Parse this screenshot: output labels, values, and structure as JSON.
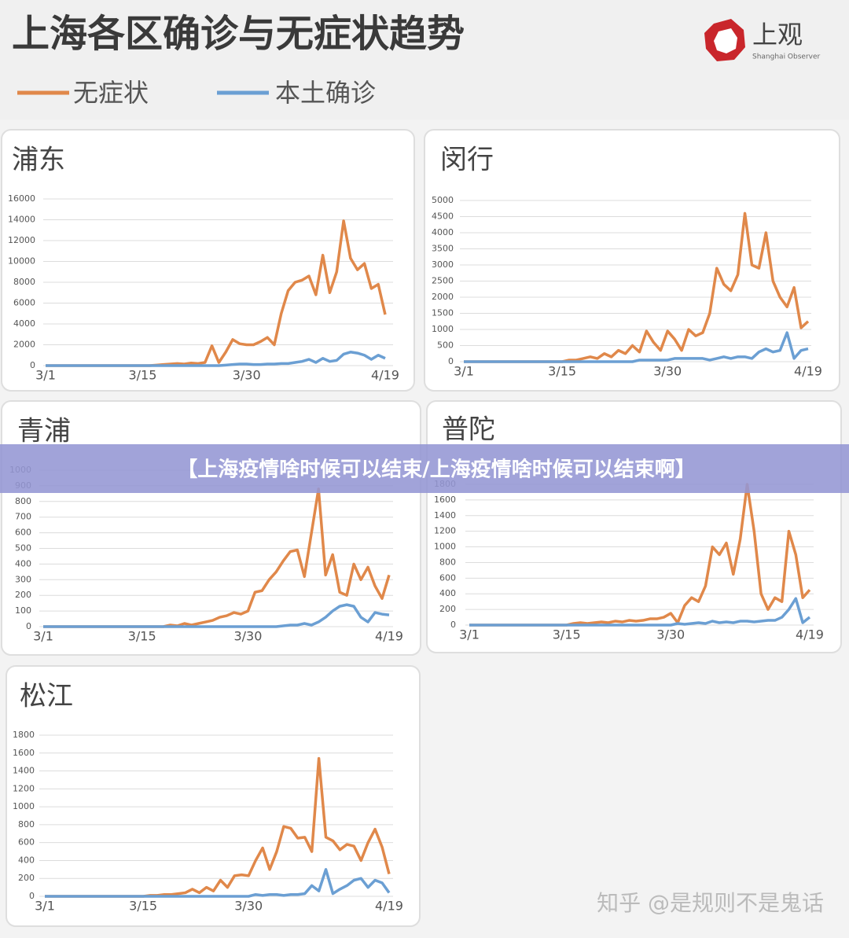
{
  "header": {
    "title": "上海各区确诊与无症状趋势",
    "logo": "上观",
    "logo_subtitle": "Shanghai Observer"
  },
  "banner": "【上海疫情啥时候可以结束/上海疫情啥时候可以结束啊】",
  "watermark": "知乎 @是规则不是鬼话",
  "chart_data": [
    {
      "type": "line",
      "title": "浦东",
      "categories": [
        "3/1",
        null,
        null,
        null,
        null,
        null,
        null,
        null,
        null,
        null,
        null,
        null,
        null,
        null,
        "3/15",
        null,
        null,
        null,
        null,
        null,
        null,
        null,
        null,
        null,
        null,
        null,
        null,
        null,
        null,
        "3/30",
        null,
        null,
        null,
        null,
        null,
        null,
        null,
        null,
        null,
        null,
        null,
        null,
        null,
        null,
        null,
        null,
        null,
        null,
        null,
        "4/19"
      ],
      "series": [
        {
          "name": "无症状",
          "color": "#e0884a",
          "values": [
            0,
            0,
            0,
            0,
            0,
            0,
            0,
            0,
            0,
            0,
            0,
            0,
            0,
            0,
            0,
            0,
            50,
            100,
            150,
            200,
            150,
            250,
            200,
            300,
            1900,
            300,
            1300,
            2500,
            2100,
            2000,
            2000,
            2300,
            2700,
            2000,
            5000,
            7200,
            8000,
            8200,
            8600,
            6800,
            10600,
            7000,
            9000,
            13900,
            10300,
            9200,
            9800,
            7400,
            7800,
            4900
          ]
        },
        {
          "name": "本土确诊",
          "color": "#6b9fd3",
          "values": [
            0,
            0,
            0,
            0,
            0,
            0,
            0,
            0,
            0,
            0,
            0,
            0,
            0,
            0,
            0,
            0,
            0,
            0,
            0,
            0,
            0,
            0,
            0,
            0,
            0,
            0,
            50,
            100,
            150,
            150,
            100,
            100,
            150,
            150,
            200,
            200,
            300,
            400,
            600,
            300,
            700,
            400,
            500,
            1100,
            1300,
            1200,
            1000,
            600,
            1000,
            700
          ]
        }
      ],
      "ylim": [
        0,
        16000
      ],
      "yticks": [
        0,
        2000,
        4000,
        6000,
        8000,
        10000,
        12000,
        14000,
        16000
      ],
      "grid": true
    },
    {
      "type": "line",
      "title": "闵行",
      "categories": [
        "3/1",
        null,
        null,
        null,
        null,
        null,
        null,
        null,
        null,
        null,
        null,
        null,
        null,
        null,
        "3/15",
        null,
        null,
        null,
        null,
        null,
        null,
        null,
        null,
        null,
        null,
        null,
        null,
        null,
        null,
        "3/30",
        null,
        null,
        null,
        null,
        null,
        null,
        null,
        null,
        null,
        null,
        null,
        null,
        null,
        null,
        null,
        null,
        null,
        null,
        null,
        "4/19"
      ],
      "series": [
        {
          "name": "无症状",
          "color": "#e0884a",
          "values": [
            0,
            0,
            0,
            0,
            0,
            0,
            0,
            0,
            0,
            0,
            0,
            0,
            0,
            0,
            0,
            50,
            50,
            100,
            150,
            100,
            250,
            150,
            350,
            250,
            500,
            300,
            950,
            600,
            350,
            950,
            700,
            350,
            1000,
            800,
            900,
            1500,
            2900,
            2400,
            2200,
            2700,
            4600,
            3000,
            2900,
            4000,
            2500,
            2000,
            1700,
            2300,
            1050,
            1250
          ]
        },
        {
          "name": "本土确诊",
          "color": "#6b9fd3",
          "values": [
            0,
            0,
            0,
            0,
            0,
            0,
            0,
            0,
            0,
            0,
            0,
            0,
            0,
            0,
            0,
            0,
            0,
            0,
            0,
            0,
            0,
            0,
            0,
            0,
            0,
            50,
            50,
            50,
            50,
            50,
            100,
            100,
            100,
            100,
            100,
            50,
            100,
            150,
            100,
            150,
            150,
            100,
            300,
            400,
            300,
            350,
            900,
            100,
            350,
            400
          ]
        }
      ],
      "ylim": [
        0,
        5000
      ],
      "yticks": [
        0,
        500,
        1000,
        1500,
        2000,
        2500,
        3000,
        3500,
        4000,
        4500,
        5000
      ],
      "grid": true
    },
    {
      "type": "line",
      "title": "青浦",
      "categories": [
        "3/1",
        null,
        null,
        null,
        null,
        null,
        null,
        null,
        null,
        null,
        null,
        null,
        null,
        null,
        "3/15",
        null,
        null,
        null,
        null,
        null,
        null,
        null,
        null,
        null,
        null,
        null,
        null,
        null,
        null,
        "3/30",
        null,
        null,
        null,
        null,
        null,
        null,
        null,
        null,
        null,
        null,
        null,
        null,
        null,
        null,
        null,
        null,
        null,
        null,
        null,
        "4/19"
      ],
      "series": [
        {
          "name": "无症状",
          "color": "#e0884a",
          "values": [
            0,
            0,
            0,
            0,
            0,
            0,
            0,
            0,
            0,
            0,
            0,
            0,
            0,
            0,
            0,
            0,
            0,
            0,
            10,
            5,
            20,
            10,
            20,
            30,
            40,
            60,
            70,
            90,
            80,
            100,
            220,
            230,
            300,
            350,
            420,
            480,
            490,
            320,
            600,
            880,
            330,
            460,
            220,
            200,
            400,
            300,
            380,
            260,
            180,
            330
          ]
        },
        {
          "name": "本土确诊",
          "color": "#6b9fd3",
          "values": [
            0,
            0,
            0,
            0,
            0,
            0,
            0,
            0,
            0,
            0,
            0,
            0,
            0,
            0,
            0,
            0,
            0,
            0,
            0,
            0,
            0,
            0,
            0,
            0,
            0,
            0,
            0,
            0,
            0,
            0,
            0,
            0,
            0,
            0,
            5,
            10,
            10,
            20,
            10,
            30,
            60,
            100,
            130,
            140,
            130,
            60,
            30,
            90,
            80,
            75
          ]
        }
      ],
      "ylim": [
        0,
        1000
      ],
      "yticks": [
        0,
        100,
        200,
        300,
        400,
        500,
        600,
        700,
        800,
        900,
        1000
      ],
      "grid": true
    },
    {
      "type": "line",
      "title": "普陀",
      "categories": [
        "3/1",
        null,
        null,
        null,
        null,
        null,
        null,
        null,
        null,
        null,
        null,
        null,
        null,
        null,
        "3/15",
        null,
        null,
        null,
        null,
        null,
        null,
        null,
        null,
        null,
        null,
        null,
        null,
        null,
        null,
        "3/30",
        null,
        null,
        null,
        null,
        null,
        null,
        null,
        null,
        null,
        null,
        null,
        null,
        null,
        null,
        null,
        null,
        null,
        null,
        null,
        "4/19"
      ],
      "series": [
        {
          "name": "无症状",
          "color": "#e0884a",
          "values": [
            0,
            0,
            0,
            0,
            0,
            0,
            0,
            0,
            0,
            0,
            0,
            0,
            0,
            0,
            0,
            20,
            30,
            20,
            30,
            40,
            30,
            50,
            40,
            60,
            50,
            60,
            80,
            80,
            100,
            150,
            30,
            250,
            350,
            300,
            500,
            1000,
            900,
            1050,
            650,
            1100,
            1800,
            1200,
            400,
            200,
            350,
            300,
            1200,
            900,
            350,
            450
          ]
        },
        {
          "name": "本土确诊",
          "color": "#6b9fd3",
          "values": [
            0,
            0,
            0,
            0,
            0,
            0,
            0,
            0,
            0,
            0,
            0,
            0,
            0,
            0,
            0,
            0,
            0,
            0,
            0,
            0,
            0,
            0,
            0,
            0,
            0,
            0,
            0,
            0,
            0,
            0,
            20,
            10,
            20,
            30,
            20,
            50,
            30,
            40,
            30,
            50,
            50,
            40,
            50,
            60,
            60,
            100,
            200,
            340,
            30,
            100
          ]
        }
      ],
      "ylim": [
        0,
        1800
      ],
      "yticks": [
        0,
        200,
        400,
        600,
        800,
        1000,
        1200,
        1400,
        1600,
        1800
      ],
      "grid": true
    },
    {
      "type": "line",
      "title": "松江",
      "categories": [
        "3/1",
        null,
        null,
        null,
        null,
        null,
        null,
        null,
        null,
        null,
        null,
        null,
        null,
        null,
        "3/15",
        null,
        null,
        null,
        null,
        null,
        null,
        null,
        null,
        null,
        null,
        null,
        null,
        null,
        null,
        "3/30",
        null,
        null,
        null,
        null,
        null,
        null,
        null,
        null,
        null,
        null,
        null,
        null,
        null,
        null,
        null,
        null,
        null,
        null,
        null,
        "4/19"
      ],
      "series": [
        {
          "name": "无症状",
          "color": "#e0884a",
          "values": [
            0,
            0,
            0,
            0,
            0,
            0,
            0,
            0,
            0,
            0,
            0,
            0,
            0,
            0,
            0,
            10,
            10,
            20,
            20,
            30,
            40,
            80,
            40,
            100,
            60,
            180,
            100,
            230,
            240,
            230,
            400,
            540,
            300,
            500,
            780,
            760,
            650,
            660,
            500,
            1540,
            660,
            620,
            520,
            580,
            560,
            400,
            600,
            750,
            550,
            250
          ]
        },
        {
          "name": "本土确诊",
          "color": "#6b9fd3",
          "values": [
            0,
            0,
            0,
            0,
            0,
            0,
            0,
            0,
            0,
            0,
            0,
            0,
            0,
            0,
            0,
            0,
            0,
            0,
            0,
            0,
            0,
            0,
            0,
            0,
            0,
            0,
            0,
            0,
            0,
            0,
            20,
            10,
            20,
            20,
            10,
            20,
            20,
            30,
            120,
            60,
            300,
            30,
            80,
            120,
            180,
            200,
            100,
            180,
            150,
            40
          ]
        }
      ],
      "ylim": [
        0,
        1800
      ],
      "yticks": [
        0,
        200,
        400,
        600,
        800,
        1000,
        1200,
        1400,
        1600,
        1800
      ],
      "grid": true
    }
  ]
}
